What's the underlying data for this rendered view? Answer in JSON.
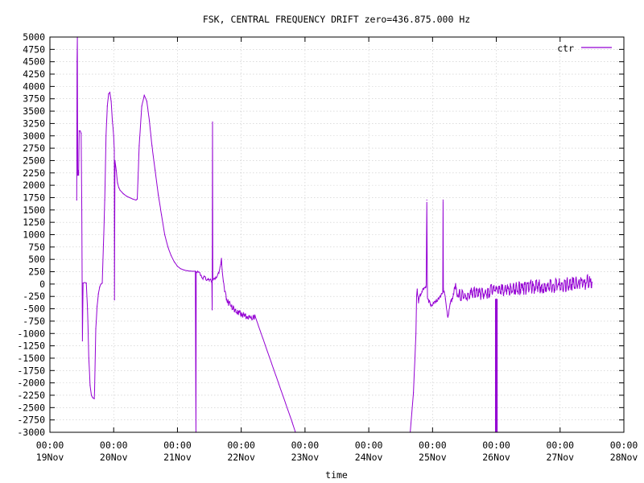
{
  "chart_data": {
    "type": "line",
    "title": "FSK, CENTRAL FREQUENCY DRIFT zero=436.875.000 Hz",
    "xlabel": "time",
    "ylabel": "",
    "ylim": [
      -3000,
      5000
    ],
    "yticks": [
      5000,
      4750,
      4500,
      4250,
      4000,
      3750,
      3500,
      3250,
      3000,
      2750,
      2500,
      2250,
      2000,
      1750,
      1500,
      1250,
      1000,
      750,
      500,
      250,
      0,
      -250,
      -500,
      -750,
      -1000,
      -1250,
      -1500,
      -1750,
      -2000,
      -2250,
      -2500,
      -2750,
      -3000
    ],
    "xlim": [
      0,
      9
    ],
    "xticks": [
      {
        "v": 0,
        "time": "00:00",
        "date": "19Nov"
      },
      {
        "v": 1,
        "time": "00:00",
        "date": "20Nov"
      },
      {
        "v": 2,
        "time": "00:00",
        "date": "21Nov"
      },
      {
        "v": 3,
        "time": "00:00",
        "date": "22Nov"
      },
      {
        "v": 4,
        "time": "00:00",
        "date": "23Nov"
      },
      {
        "v": 5,
        "time": "00:00",
        "date": "24Nov"
      },
      {
        "v": 6,
        "time": "00:00",
        "date": "25Nov"
      },
      {
        "v": 7,
        "time": "00:00",
        "date": "26Nov"
      },
      {
        "v": 8,
        "time": "00:00",
        "date": "27Nov"
      },
      {
        "v": 9,
        "time": "00:00",
        "date": "28Nov"
      }
    ],
    "grid": true,
    "legend_position": "top-right",
    "series": [
      {
        "name": "ctr",
        "color": "#9400d3",
        "points": [
          [
            0.42,
            1700
          ],
          [
            0.425,
            4500
          ],
          [
            0.43,
            5000
          ],
          [
            0.435,
            2200
          ],
          [
            0.445,
            2300
          ],
          [
            0.45,
            2200
          ],
          [
            0.46,
            3100
          ],
          [
            0.475,
            3100
          ],
          [
            0.49,
            3050
          ],
          [
            0.5,
            1500
          ],
          [
            0.51,
            -1150
          ],
          [
            0.52,
            20
          ],
          [
            0.545,
            30
          ],
          [
            0.57,
            20
          ],
          [
            0.59,
            -500
          ],
          [
            0.61,
            -1500
          ],
          [
            0.63,
            -2050
          ],
          [
            0.65,
            -2250
          ],
          [
            0.67,
            -2300
          ],
          [
            0.695,
            -2320
          ],
          [
            0.7,
            -2150
          ],
          [
            0.72,
            -900
          ],
          [
            0.74,
            -450
          ],
          [
            0.76,
            -200
          ],
          [
            0.78,
            -60
          ],
          [
            0.8,
            0
          ],
          [
            0.82,
            20
          ],
          [
            0.84,
            800
          ],
          [
            0.86,
            1700
          ],
          [
            0.88,
            3000
          ],
          [
            0.9,
            3600
          ],
          [
            0.92,
            3850
          ],
          [
            0.94,
            3880
          ],
          [
            0.96,
            3700
          ],
          [
            0.98,
            3300
          ],
          [
            1.0,
            3000
          ],
          [
            1.01,
            2700
          ],
          [
            1.012,
            -320
          ],
          [
            1.02,
            2500
          ],
          [
            1.04,
            2300
          ],
          [
            1.06,
            2050
          ],
          [
            1.08,
            1950
          ],
          [
            1.1,
            1900
          ],
          [
            1.15,
            1830
          ],
          [
            1.2,
            1780
          ],
          [
            1.25,
            1750
          ],
          [
            1.3,
            1720
          ],
          [
            1.35,
            1700
          ],
          [
            1.37,
            1720
          ],
          [
            1.4,
            2800
          ],
          [
            1.44,
            3600
          ],
          [
            1.48,
            3820
          ],
          [
            1.52,
            3700
          ],
          [
            1.56,
            3300
          ],
          [
            1.6,
            2800
          ],
          [
            1.65,
            2300
          ],
          [
            1.7,
            1800
          ],
          [
            1.75,
            1400
          ],
          [
            1.8,
            1000
          ],
          [
            1.85,
            750
          ],
          [
            1.9,
            580
          ],
          [
            1.95,
            450
          ],
          [
            2.0,
            360
          ],
          [
            2.05,
            310
          ],
          [
            2.1,
            285
          ],
          [
            2.15,
            270
          ],
          [
            2.2,
            262
          ],
          [
            2.25,
            258
          ],
          [
            2.28,
            260
          ],
          [
            2.29,
            -3000
          ],
          [
            2.295,
            250
          ],
          [
            2.33,
            240
          ],
          [
            2.37,
            180
          ],
          [
            2.4,
            100
          ],
          [
            2.42,
            150
          ],
          [
            2.44,
            120
          ],
          [
            2.46,
            80
          ],
          [
            2.48,
            110
          ],
          [
            2.5,
            60
          ],
          [
            2.52,
            90
          ],
          [
            2.54,
            40
          ],
          [
            2.545,
            -520
          ],
          [
            2.55,
            3280
          ],
          [
            2.555,
            90
          ],
          [
            2.6,
            120
          ],
          [
            2.65,
            230
          ],
          [
            2.68,
            400
          ],
          [
            2.69,
            520
          ],
          [
            2.7,
            300
          ],
          [
            2.72,
            60
          ],
          [
            2.74,
            -150
          ],
          [
            2.76,
            -260
          ],
          [
            2.8,
            -380
          ],
          [
            2.85,
            -450
          ],
          [
            2.9,
            -530
          ],
          [
            2.95,
            -560
          ],
          [
            3.0,
            -620
          ],
          [
            3.05,
            -640
          ],
          [
            3.1,
            -660
          ],
          [
            3.15,
            -680
          ],
          [
            3.2,
            -690
          ],
          [
            3.22,
            -660
          ],
          [
            3.8,
            -2800
          ],
          [
            3.85,
            -3000
          ],
          [
            5.65,
            -3000
          ],
          [
            5.7,
            -2200
          ],
          [
            5.74,
            -1000
          ],
          [
            5.75,
            -250
          ],
          [
            5.76,
            -100
          ],
          [
            5.78,
            -380
          ],
          [
            5.8,
            -250
          ],
          [
            5.83,
            -150
          ],
          [
            5.86,
            -100
          ],
          [
            5.88,
            -80
          ],
          [
            5.9,
            -50
          ],
          [
            5.91,
            1700
          ],
          [
            5.92,
            -250
          ],
          [
            5.94,
            -350
          ],
          [
            5.98,
            -420
          ],
          [
            6.02,
            -380
          ],
          [
            6.06,
            -320
          ],
          [
            6.1,
            -300
          ],
          [
            6.14,
            -200
          ],
          [
            6.16,
            -150
          ],
          [
            6.165,
            1700
          ],
          [
            6.17,
            -100
          ],
          [
            6.2,
            -300
          ],
          [
            6.24,
            -650
          ],
          [
            6.28,
            -400
          ],
          [
            6.32,
            -200
          ],
          [
            6.36,
            -100
          ],
          [
            6.4,
            -200
          ],
          [
            6.5,
            -250
          ],
          [
            6.6,
            -200
          ],
          [
            6.7,
            -180
          ],
          [
            6.8,
            -200
          ],
          [
            6.9,
            -150
          ],
          [
            7.0,
            -100
          ],
          [
            7.1,
            -120
          ],
          [
            7.2,
            -100
          ],
          [
            7.4,
            -80
          ],
          [
            7.6,
            -60
          ],
          [
            7.8,
            -40
          ],
          [
            8.0,
            -20
          ],
          [
            8.2,
            0
          ],
          [
            8.4,
            20
          ],
          [
            8.5,
            40
          ]
        ]
      }
    ],
    "noise_bands": [
      {
        "x0": 3.28,
        "x1": 3.26,
        "note": ""
      }
    ]
  }
}
